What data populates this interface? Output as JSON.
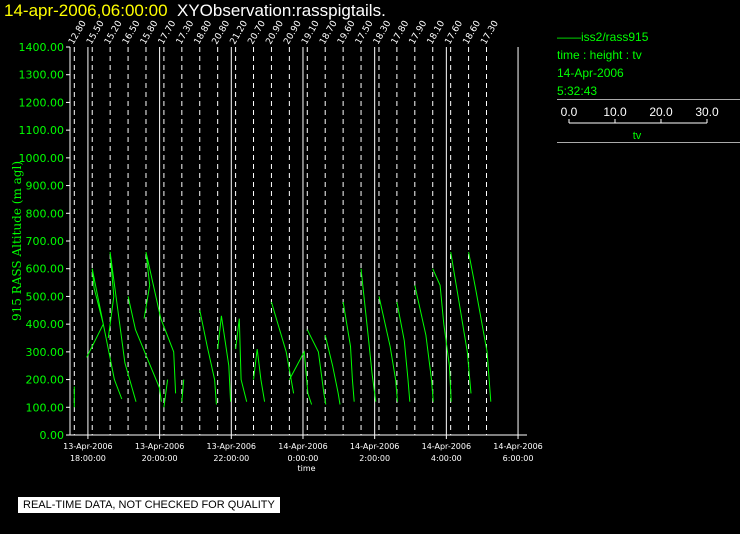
{
  "header": {
    "date": "14-apr-2006,06:00:00",
    "title": "XYObservation:rasspigtails."
  },
  "legend": {
    "series": "iss2/rass915",
    "axes": "time : height : tv",
    "date": "14-Apr-2006",
    "time": "5:32:43",
    "scale_ticks": [
      "0.0",
      "10.0",
      "20.0",
      "30.0"
    ],
    "scale_label": "tv"
  },
  "footer": {
    "qc_notice": "REAL-TIME DATA, NOT CHECKED FOR QUALITY"
  },
  "colors": {
    "background": "#000000",
    "trace": "#00ff00",
    "axis_text": "#00ff00",
    "title": "#ffff00"
  },
  "chart_data": {
    "type": "line",
    "ylabel": "915 RASS Altitude (m agl)",
    "xlabel": "time",
    "ylim": [
      0,
      1400
    ],
    "yticks": [
      "0.00",
      "100.00",
      "200.00",
      "300.00",
      "400.00",
      "500.00",
      "600.00",
      "700.00",
      "800.00",
      "900.00",
      "1000.00",
      "1100.00",
      "1200.00",
      "1300.00",
      "1400.00"
    ],
    "xticks": [
      {
        "date": "13-Apr-2006",
        "time": "18:00:00"
      },
      {
        "date": "13-Apr-2006",
        "time": "20:00:00"
      },
      {
        "date": "13-Apr-2006",
        "time": "22:00:00"
      },
      {
        "date": "14-Apr-2006",
        "time": "0:00:00"
      },
      {
        "date": "14-Apr-2006",
        "time": "2:00:00"
      },
      {
        "date": "14-Apr-2006",
        "time": "4:00:00"
      },
      {
        "date": "14-Apr-2006",
        "time": "6:00:00"
      }
    ],
    "xlim_hours": [
      17.5,
      30.25
    ],
    "profiles": [
      {
        "label": "12.80",
        "time_h": 17.62,
        "points": [
          [
            0.0,
            100
          ],
          [
            0.0,
            175
          ]
        ]
      },
      {
        "label": "15.50",
        "time_h": 18.12,
        "points": [
          [
            -0.15,
            280
          ],
          [
            0.3,
            400
          ],
          [
            0.05,
            530
          ],
          [
            0.0,
            600
          ],
          [
            0.6,
            200
          ],
          [
            0.8,
            130
          ]
        ]
      },
      {
        "label": "15.20",
        "time_h": 18.62,
        "points": [
          [
            -0.05,
            350
          ],
          [
            0.1,
            500
          ],
          [
            0.0,
            660
          ],
          [
            0.4,
            260
          ],
          [
            0.7,
            120
          ]
        ]
      },
      {
        "label": "16.50",
        "time_h": 19.12,
        "points": [
          [
            0.0,
            500
          ],
          [
            0.2,
            380
          ],
          [
            0.6,
            250
          ],
          [
            0.85,
            170
          ],
          [
            0.9,
            120
          ]
        ]
      },
      {
        "label": "15.80",
        "time_h": 19.62,
        "points": [
          [
            -0.05,
            420
          ],
          [
            0.1,
            540
          ],
          [
            0.0,
            660
          ],
          [
            0.4,
            420
          ],
          [
            0.75,
            300
          ],
          [
            0.8,
            150
          ]
        ]
      },
      {
        "label": "17.70",
        "time_h": 20.12,
        "points": [
          [
            0.0,
            100
          ],
          [
            0.1,
            200
          ]
        ]
      },
      {
        "label": "17.30",
        "time_h": 20.62,
        "points": [
          [
            0.0,
            120
          ],
          [
            0.05,
            200
          ]
        ]
      },
      {
        "label": "18.80",
        "time_h": 21.12,
        "points": [
          [
            0.0,
            450
          ],
          [
            0.2,
            320
          ],
          [
            0.4,
            200
          ],
          [
            0.45,
            110
          ]
        ]
      },
      {
        "label": "20.80",
        "time_h": 21.62,
        "points": [
          [
            0.0,
            310
          ],
          [
            0.1,
            430
          ],
          [
            0.3,
            250
          ],
          [
            0.35,
            120
          ]
        ]
      },
      {
        "label": "21.20",
        "time_h": 22.12,
        "points": [
          [
            0.0,
            310
          ],
          [
            0.1,
            420
          ],
          [
            0.15,
            200
          ],
          [
            0.3,
            120
          ]
        ]
      },
      {
        "label": "20.70",
        "time_h": 22.62,
        "points": [
          [
            0.0,
            200
          ],
          [
            0.1,
            310
          ],
          [
            0.2,
            200
          ],
          [
            0.3,
            120
          ]
        ]
      },
      {
        "label": "20.90",
        "time_h": 23.12,
        "points": [
          [
            0.0,
            480
          ],
          [
            0.4,
            300
          ],
          [
            0.6,
            150
          ]
        ]
      },
      {
        "label": "20.90",
        "time_h": 23.62,
        "points": [
          [
            0.0,
            200
          ],
          [
            0.4,
            300
          ],
          [
            0.5,
            150
          ],
          [
            0.6,
            110
          ]
        ]
      },
      {
        "label": "19.10",
        "time_h": 24.12,
        "points": [
          [
            0.0,
            380
          ],
          [
            0.3,
            300
          ],
          [
            0.45,
            150
          ],
          [
            0.5,
            110
          ]
        ]
      },
      {
        "label": "18.70",
        "time_h": 24.62,
        "points": [
          [
            0.0,
            360
          ],
          [
            0.2,
            250
          ],
          [
            0.35,
            150
          ],
          [
            0.4,
            110
          ]
        ]
      },
      {
        "label": "19.60",
        "time_h": 25.12,
        "points": [
          [
            0.0,
            480
          ],
          [
            0.2,
            320
          ],
          [
            0.25,
            200
          ],
          [
            0.3,
            120
          ]
        ]
      },
      {
        "label": "17.50",
        "time_h": 25.62,
        "points": [
          [
            0.0,
            600
          ],
          [
            0.2,
            350
          ],
          [
            0.3,
            220
          ],
          [
            0.4,
            120
          ]
        ]
      },
      {
        "label": "18.30",
        "time_h": 26.12,
        "points": [
          [
            0.0,
            500
          ],
          [
            0.3,
            320
          ],
          [
            0.45,
            200
          ],
          [
            0.5,
            120
          ]
        ]
      },
      {
        "label": "17.80",
        "time_h": 26.62,
        "points": [
          [
            0.0,
            480
          ],
          [
            0.2,
            340
          ],
          [
            0.3,
            200
          ],
          [
            0.35,
            120
          ]
        ]
      },
      {
        "label": "17.90",
        "time_h": 27.12,
        "points": [
          [
            0.0,
            540
          ],
          [
            0.3,
            360
          ],
          [
            0.45,
            200
          ],
          [
            0.5,
            120
          ]
        ]
      },
      {
        "label": "18.10",
        "time_h": 27.62,
        "points": [
          [
            0.0,
            600
          ],
          [
            0.2,
            540
          ],
          [
            0.3,
            400
          ],
          [
            0.45,
            250
          ],
          [
            0.5,
            120
          ]
        ]
      },
      {
        "label": "17.60",
        "time_h": 28.12,
        "points": [
          [
            0.0,
            660
          ],
          [
            0.2,
            500
          ],
          [
            0.45,
            300
          ],
          [
            0.55,
            150
          ]
        ]
      },
      {
        "label": "18.60",
        "time_h": 28.62,
        "points": [
          [
            0.0,
            660
          ],
          [
            0.2,
            520
          ],
          [
            0.5,
            300
          ],
          [
            0.6,
            120
          ]
        ]
      },
      {
        "label": "17.30",
        "time_h": 29.12,
        "points": [
          [
            0.0,
            100
          ],
          [
            0.0,
            100
          ]
        ]
      }
    ]
  }
}
